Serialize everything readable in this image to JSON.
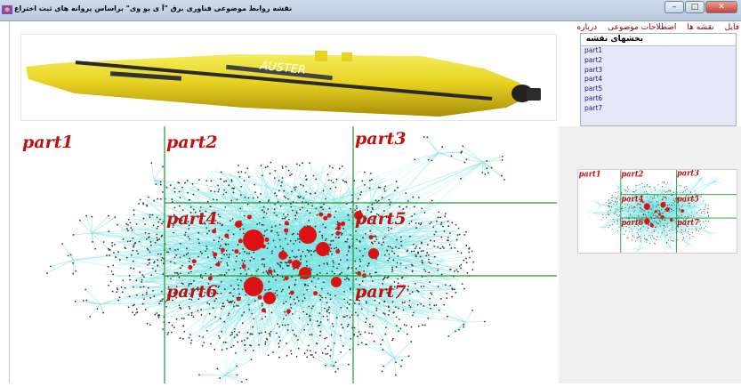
{
  "window": {
    "title": "نقشه روابط موضوعی فناوری برق \"آ ی یو وی\" براساس پروانه های ثبت اختراع",
    "controls": [
      "minimize",
      "maximize",
      "close"
    ]
  },
  "menu": [
    "فایل",
    "نقشه ها",
    "اصطلاحات موضوعی",
    "درباره"
  ],
  "product_image": {
    "label": "AUSTER"
  },
  "parts_panel": {
    "header": "بخشهای نقشه",
    "items": [
      "part1",
      "part2",
      "part3",
      "part4",
      "part5",
      "part6",
      "part7"
    ]
  },
  "map": {
    "labels": [
      "part1",
      "part2",
      "part3",
      "part4",
      "part5",
      "part6",
      "part7"
    ]
  },
  "colors": {
    "edge": "#7fe3e3",
    "node": "#333333",
    "hub": "#dd1111",
    "grid": "#1f9a2e",
    "label": "#c01010"
  }
}
